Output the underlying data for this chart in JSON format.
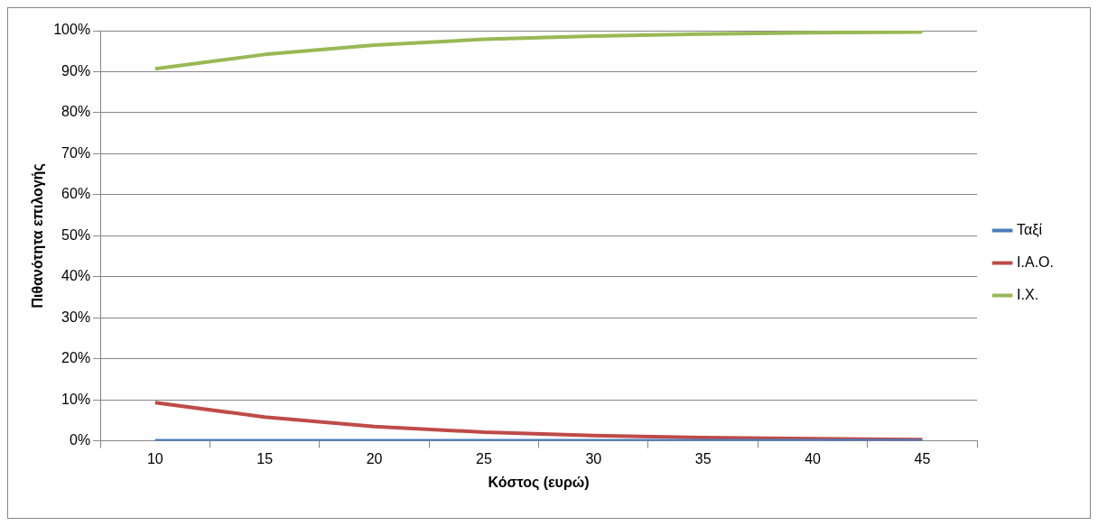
{
  "chart_data": {
    "type": "line",
    "xlabel": "Κόστος (ευρώ)",
    "ylabel": "Πιθανότητα επιλογής",
    "categories": [
      "10",
      "15",
      "20",
      "25",
      "30",
      "35",
      "40",
      "45"
    ],
    "series": [
      {
        "name": "Ταξί",
        "color": "#4a7ebb",
        "values": [
          0,
          0,
          0,
          0,
          0,
          0,
          0,
          0
        ]
      },
      {
        "name": "Ι.Α.Ο.",
        "color": "#be4b48",
        "values": [
          9.3,
          5.8,
          3.5,
          2.1,
          1.3,
          0.8,
          0.5,
          0.3
        ]
      },
      {
        "name": "Ι.Χ.",
        "color": "#98b954",
        "values": [
          90.7,
          94.2,
          96.5,
          97.9,
          98.7,
          99.2,
          99.5,
          99.7
        ]
      }
    ],
    "ylim": [
      0,
      100
    ],
    "yticks": [
      {
        "value": 0,
        "label": "0%"
      },
      {
        "value": 10,
        "label": "10%"
      },
      {
        "value": 20,
        "label": "20%"
      },
      {
        "value": 30,
        "label": "30%"
      },
      {
        "value": 40,
        "label": "40%"
      },
      {
        "value": 50,
        "label": "50%"
      },
      {
        "value": 60,
        "label": "60%"
      },
      {
        "value": 70,
        "label": "70%"
      },
      {
        "value": 80,
        "label": "80%"
      },
      {
        "value": 90,
        "label": "90%"
      },
      {
        "value": 100,
        "label": "100%"
      }
    ],
    "grid": "y",
    "legend": "right",
    "marker": "none"
  }
}
